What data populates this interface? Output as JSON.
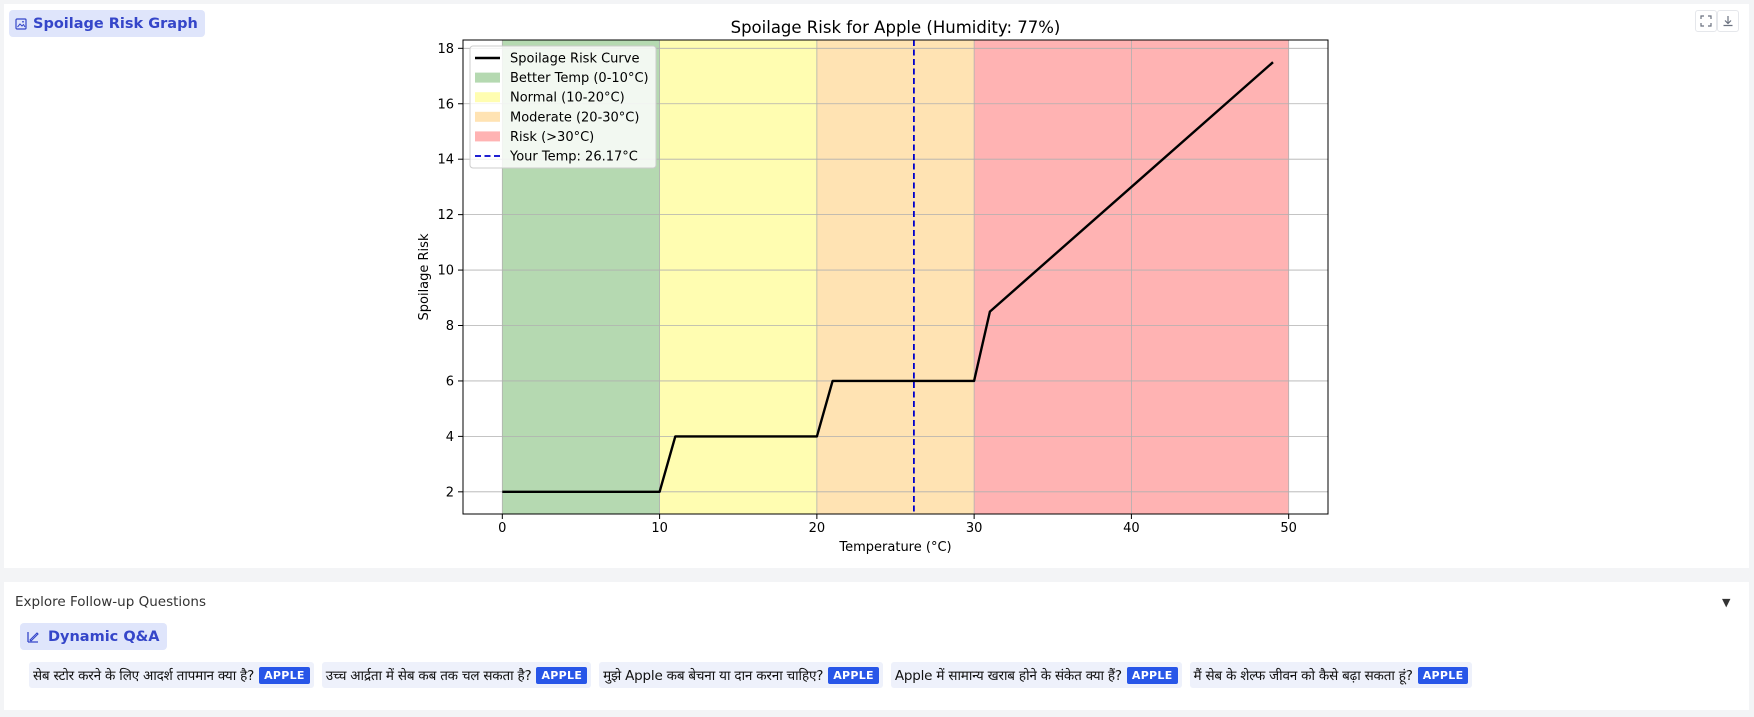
{
  "header": {
    "badge_label": "Spoilage Risk Graph",
    "badge_icon": "image-icon",
    "fullscreen_icon": "fullscreen-icon",
    "download_icon": "download-icon"
  },
  "chart_data": {
    "type": "line",
    "title": "Spoilage Risk for Apple (Humidity: 77%)",
    "xlabel": "Temperature (°C)",
    "ylabel": "Spoilage Risk",
    "xlim": [
      -2.5,
      52.5
    ],
    "ylim": [
      1.2,
      18.3
    ],
    "xticks": [
      0,
      10,
      20,
      30,
      40,
      50
    ],
    "yticks": [
      2,
      4,
      6,
      8,
      10,
      12,
      14,
      16,
      18
    ],
    "grid": true,
    "legend_placement": "top-left",
    "bands": [
      {
        "name": "Better Temp (0-10°C)",
        "x0": 0,
        "x1": 10,
        "color": "#b5d9b1"
      },
      {
        "name": "Normal (10-20°C)",
        "x0": 10,
        "x1": 20,
        "color": "#fffdb1"
      },
      {
        "name": "Moderate (20-30°C)",
        "x0": 20,
        "x1": 30,
        "color": "#ffe3b3"
      },
      {
        "name": "Risk (>30°C)",
        "x0": 30,
        "x1": 50,
        "color": "#ffb3b3"
      }
    ],
    "series": [
      {
        "name": "Spoilage Risk Curve",
        "color": "#000000",
        "x": [
          0,
          10,
          11,
          20,
          21,
          30,
          31,
          49
        ],
        "y": [
          2,
          2,
          4,
          4,
          6,
          6,
          8.5,
          17.5
        ]
      }
    ],
    "marker": {
      "name": "Your Temp: 26.17°C",
      "x": 26.17,
      "color": "#0000cc"
    }
  },
  "followup": {
    "title": "Explore Follow-up Questions",
    "arrow": "▼",
    "qa_badge_label": "Dynamic Q&A",
    "qa_icon": "chart-pen-icon",
    "questions": [
      {
        "text": "सेब स्टोर करने के लिए आदर्श तापमान क्या है?",
        "tag": "APPLE"
      },
      {
        "text": "उच्च आर्द्रता में सेब कब तक चल सकता है?",
        "tag": "APPLE"
      },
      {
        "text": "मुझे Apple कब बेचना या दान करना चाहिए?",
        "tag": "APPLE"
      },
      {
        "text": "Apple में सामान्य खराब होने के संकेत क्या हैं?",
        "tag": "APPLE"
      },
      {
        "text": "मैं सेब के शेल्फ जीवन को कैसे बढ़ा सकता हूं?",
        "tag": "APPLE"
      }
    ]
  }
}
